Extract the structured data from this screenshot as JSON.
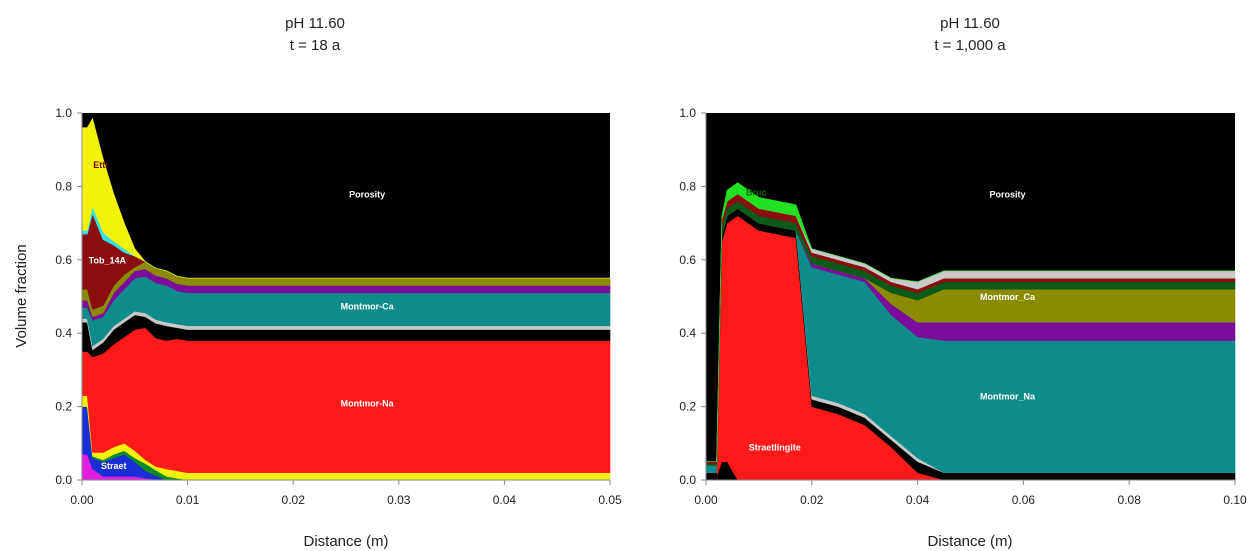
{
  "ylabel": "Volume fraction",
  "colors": {
    "black": "#000000",
    "red": "#ff1a1a",
    "teal": "#0e8b8b",
    "olive": "#8c8a00",
    "purple": "#7a0d9a",
    "yellow": "#f2f20a",
    "maroon": "#8a0e0e",
    "blue": "#1a2ed6",
    "green": "#0f8a2a",
    "gray": "#c9c9c9",
    "magenta": "#e01ee0",
    "cyan": "#33e0f0",
    "lime": "#22e022",
    "darkgreen": "#0b5a1a"
  },
  "chart_data": [
    {
      "type": "area",
      "title": "pH 11.60",
      "subtitle": "t = 18 a",
      "xlabel": "Distance (m)",
      "ylabel": "Volume fraction",
      "xlim": [
        0,
        0.05
      ],
      "ylim": [
        0,
        1
      ],
      "xticks": [
        "0.00",
        "0.01",
        "0.02",
        "0.03",
        "0.04",
        "0.05"
      ],
      "yticks": [
        "0.0",
        "0.2",
        "0.4",
        "0.6",
        "0.8",
        "1.0"
      ],
      "x": [
        0,
        0.0005,
        0.001,
        0.002,
        0.003,
        0.004,
        0.005,
        0.006,
        0.007,
        0.008,
        0.009,
        0.01,
        0.015,
        0.02,
        0.03,
        0.04,
        0.05
      ],
      "layers": [
        {
          "color": "magenta",
          "values": [
            0.07,
            0.07,
            0.03,
            0.01,
            0.01,
            0.01,
            0.01,
            0.005,
            0.002,
            0.0,
            0.0,
            0.0,
            0.0,
            0.0,
            0.0,
            0.0,
            0.0
          ]
        },
        {
          "label": "Straet",
          "color": "blue",
          "values": [
            0.13,
            0.13,
            0.03,
            0.04,
            0.05,
            0.06,
            0.04,
            0.02,
            0.01,
            0.0,
            0.0,
            0.0,
            0.0,
            0.0,
            0.0,
            0.0,
            0.0
          ]
        },
        {
          "color": "green",
          "values": [
            0.0,
            0.0,
            0.005,
            0.005,
            0.01,
            0.01,
            0.01,
            0.02,
            0.015,
            0.01,
            0.005,
            0.0,
            0.0,
            0.0,
            0.0,
            0.0,
            0.0
          ]
        },
        {
          "color": "yellow",
          "values": [
            0.03,
            0.03,
            0.01,
            0.02,
            0.02,
            0.02,
            0.02,
            0.01,
            0.01,
            0.02,
            0.02,
            0.02,
            0.02,
            0.02,
            0.02,
            0.02,
            0.02
          ]
        },
        {
          "label": "Montmor-Na",
          "color": "red",
          "values": [
            0.12,
            0.12,
            0.26,
            0.27,
            0.28,
            0.29,
            0.33,
            0.36,
            0.35,
            0.35,
            0.36,
            0.36,
            0.36,
            0.36,
            0.36,
            0.36,
            0.36
          ]
        },
        {
          "color": "black",
          "values": [
            0.08,
            0.08,
            0.02,
            0.03,
            0.04,
            0.04,
            0.04,
            0.03,
            0.04,
            0.04,
            0.03,
            0.03,
            0.03,
            0.03,
            0.03,
            0.03,
            0.03
          ]
        },
        {
          "color": "gray",
          "values": [
            0.01,
            0.01,
            0.01,
            0.01,
            0.01,
            0.01,
            0.01,
            0.01,
            0.01,
            0.01,
            0.01,
            0.01,
            0.01,
            0.01,
            0.01,
            0.01,
            0.01
          ]
        },
        {
          "label": "Montmor-Ca",
          "color": "teal",
          "values": [
            0.03,
            0.03,
            0.07,
            0.06,
            0.07,
            0.08,
            0.09,
            0.1,
            0.1,
            0.1,
            0.09,
            0.09,
            0.09,
            0.09,
            0.09,
            0.09,
            0.09
          ]
        },
        {
          "color": "purple",
          "values": [
            0.02,
            0.02,
            0.01,
            0.01,
            0.02,
            0.02,
            0.02,
            0.02,
            0.02,
            0.02,
            0.02,
            0.02,
            0.02,
            0.02,
            0.02,
            0.02,
            0.02
          ]
        },
        {
          "color": "olive",
          "values": [
            0.03,
            0.03,
            0.02,
            0.02,
            0.02,
            0.02,
            0.01,
            0.02,
            0.02,
            0.02,
            0.02,
            0.02,
            0.02,
            0.02,
            0.02,
            0.02,
            0.02
          ]
        },
        {
          "label": "Tob_14A",
          "color": "maroon",
          "values": [
            0.15,
            0.15,
            0.26,
            0.18,
            0.11,
            0.06,
            0.03,
            0.0,
            0.0,
            0.0,
            0.0,
            0.0,
            0.0,
            0.0,
            0.0,
            0.0,
            0.0
          ]
        },
        {
          "color": "cyan",
          "values": [
            0.01,
            0.01,
            0.02,
            0.02,
            0.01,
            0.01,
            0.0,
            0.0,
            0.0,
            0.0,
            0.0,
            0.0,
            0.0,
            0.0,
            0.0,
            0.0,
            0.0
          ]
        },
        {
          "label": "Ettr",
          "color": "yellow",
          "values": [
            0.28,
            0.28,
            0.24,
            0.2,
            0.13,
            0.07,
            0.02,
            0.0,
            0.0,
            0.0,
            0.0,
            0.0,
            0.0,
            0.0,
            0.0,
            0.0,
            0.0
          ]
        }
      ],
      "background_label": "Porosity",
      "label_pos": [
        {
          "text": "Porosity",
          "x": 0.027,
          "y": 0.77,
          "fill": "#ffffff"
        },
        {
          "text": "Montmor-Ca",
          "x": 0.027,
          "y": 0.465,
          "fill": "#ffffff"
        },
        {
          "text": "Montmor-Na",
          "x": 0.027,
          "y": 0.2,
          "fill": "#ffffff"
        },
        {
          "text": "Tob_14A",
          "x": 0.0024,
          "y": 0.59,
          "fill": "#ffffff"
        },
        {
          "text": "Ettr",
          "x": 0.0018,
          "y": 0.85,
          "fill": "#7a0000"
        },
        {
          "text": "Straet",
          "x": 0.003,
          "y": 0.03,
          "fill": "#ffffff"
        }
      ]
    },
    {
      "type": "area",
      "title": "pH 11.60",
      "subtitle": "t = 1,000 a",
      "xlabel": "Distance (m)",
      "ylabel": "",
      "xlim": [
        0,
        0.1
      ],
      "ylim": [
        0,
        1
      ],
      "xticks": [
        "0.00",
        "0.02",
        "0.04",
        "0.06",
        "0.08",
        "0.10"
      ],
      "yticks": [
        "0.0",
        "0.2",
        "0.4",
        "0.6",
        "0.8",
        "1.0"
      ],
      "x": [
        0,
        0.001,
        0.002,
        0.003,
        0.004,
        0.006,
        0.01,
        0.017,
        0.02,
        0.025,
        0.03,
        0.035,
        0.04,
        0.045,
        0.05,
        0.06,
        0.08,
        0.1
      ],
      "layers": [
        {
          "color": "black",
          "values": [
            0.01,
            0.01,
            0.01,
            0.05,
            0.05,
            0.0,
            0.0,
            0.0,
            0.0,
            0.0,
            0.0,
            0.0,
            0.0,
            0.0,
            0.0,
            0.0,
            0.0,
            0.0
          ]
        },
        {
          "label": "Straetlingite",
          "color": "red",
          "values": [
            0.0,
            0.0,
            0.0,
            0.6,
            0.65,
            0.72,
            0.68,
            0.66,
            0.2,
            0.18,
            0.15,
            0.09,
            0.02,
            0.0,
            0.0,
            0.0,
            0.0,
            0.0
          ]
        },
        {
          "color": "black",
          "values": [
            0.01,
            0.01,
            0.01,
            0.02,
            0.02,
            0.02,
            0.02,
            0.02,
            0.02,
            0.02,
            0.02,
            0.02,
            0.03,
            0.02,
            0.02,
            0.02,
            0.02,
            0.02
          ]
        },
        {
          "color": "gray",
          "values": [
            0.0,
            0.0,
            0.0,
            0.0,
            0.0,
            0.0,
            0.0,
            0.0,
            0.01,
            0.01,
            0.01,
            0.01,
            0.01,
            0.0,
            0.0,
            0.0,
            0.0,
            0.0
          ]
        },
        {
          "label": "Montmor_Na",
          "color": "teal",
          "values": [
            0.02,
            0.02,
            0.02,
            0.0,
            0.0,
            0.0,
            0.0,
            0.0,
            0.35,
            0.35,
            0.36,
            0.33,
            0.33,
            0.36,
            0.36,
            0.36,
            0.36,
            0.36
          ]
        },
        {
          "color": "purple",
          "values": [
            0.0,
            0.0,
            0.0,
            0.0,
            0.0,
            0.0,
            0.0,
            0.0,
            0.01,
            0.01,
            0.01,
            0.03,
            0.04,
            0.05,
            0.05,
            0.05,
            0.05,
            0.05
          ]
        },
        {
          "label": "Montmor_Ca",
          "color": "olive",
          "values": [
            0.0,
            0.0,
            0.0,
            0.0,
            0.0,
            0.0,
            0.0,
            0.0,
            0.0,
            0.0,
            0.0,
            0.03,
            0.06,
            0.09,
            0.09,
            0.09,
            0.09,
            0.09
          ]
        },
        {
          "color": "darkgreen",
          "values": [
            0.005,
            0.005,
            0.005,
            0.02,
            0.02,
            0.02,
            0.02,
            0.02,
            0.02,
            0.02,
            0.02,
            0.02,
            0.02,
            0.02,
            0.02,
            0.02,
            0.02,
            0.02
          ]
        },
        {
          "color": "maroon",
          "values": [
            0.005,
            0.005,
            0.005,
            0.02,
            0.02,
            0.02,
            0.02,
            0.02,
            0.01,
            0.01,
            0.01,
            0.01,
            0.01,
            0.01,
            0.01,
            0.01,
            0.01,
            0.01
          ]
        },
        {
          "color": "gray",
          "values": [
            0.0,
            0.0,
            0.0,
            0.0,
            0.0,
            0.0,
            0.0,
            0.0,
            0.01,
            0.01,
            0.01,
            0.01,
            0.02,
            0.02,
            0.02,
            0.02,
            0.02,
            0.02
          ]
        },
        {
          "label": "Bruc",
          "color": "lime",
          "values": [
            0.0,
            0.0,
            0.0,
            0.01,
            0.03,
            0.03,
            0.03,
            0.03,
            0.0,
            0.0,
            0.0,
            0.0,
            0.0,
            0.0,
            0.0,
            0.0,
            0.0,
            0.0
          ]
        }
      ],
      "background_label": "Porosity",
      "label_pos": [
        {
          "text": "Porosity",
          "x": 0.057,
          "y": 0.77,
          "fill": "#ffffff"
        },
        {
          "text": "Montmor_Ca",
          "x": 0.057,
          "y": 0.49,
          "fill": "#ffffff"
        },
        {
          "text": "Montmor_Na",
          "x": 0.057,
          "y": 0.22,
          "fill": "#ffffff"
        },
        {
          "text": "Straetlingite",
          "x": 0.013,
          "y": 0.08,
          "fill": "#ffffff"
        },
        {
          "text": "Bruc",
          "x": 0.0095,
          "y": 0.775,
          "fill": "#0a6a0a"
        }
      ]
    }
  ]
}
